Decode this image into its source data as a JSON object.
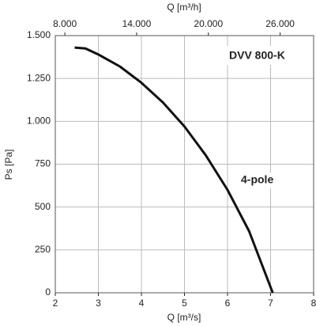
{
  "chart_data": {
    "type": "line",
    "xlabel": "Q [m³/s]",
    "ylabel": "Ps [Pa]",
    "x2label": "Q [m³/h]",
    "annotations": [
      "DVV 800-K",
      "4-pole"
    ],
    "xlim": [
      2,
      8
    ],
    "xticks": [
      2,
      3,
      4,
      5,
      6,
      7,
      8
    ],
    "x2lim": [
      7200,
      28800
    ],
    "x2ticks": [
      {
        "value": 8000,
        "label": "8.000"
      },
      {
        "value": 14000,
        "label": "14.000"
      },
      {
        "value": 20000,
        "label": "20.000"
      },
      {
        "value": 26000,
        "label": "26.000"
      }
    ],
    "ylim": [
      0,
      1500
    ],
    "yticks": [
      0,
      250,
      500,
      750,
      {
        "value": 1000,
        "label": "1.000"
      },
      {
        "value": 1250,
        "label": "1.250"
      },
      {
        "value": 1500,
        "label": "1.500"
      }
    ],
    "grid": true,
    "series": [
      {
        "color": "#111111",
        "x": [
          2.45,
          2.7,
          3,
          3.5,
          4,
          4.5,
          5,
          5.5,
          6,
          6.5,
          7.05
        ],
        "values": [
          1430,
          1425,
          1390,
          1320,
          1225,
          1110,
          970,
          800,
          600,
          360,
          0
        ]
      }
    ]
  }
}
